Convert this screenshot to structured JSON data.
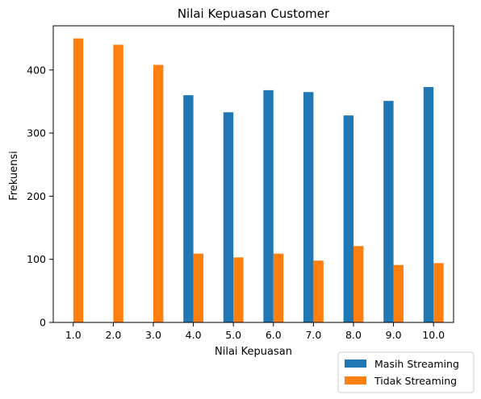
{
  "chart_data": {
    "type": "bar",
    "title": "Nilai Kepuasan Customer",
    "xlabel": "Nilai Kepuasan",
    "ylabel": "Frekuensi",
    "categories": [
      "1.0",
      "2.0",
      "3.0",
      "4.0",
      "5.0",
      "6.0",
      "7.0",
      "8.0",
      "9.0",
      "10.0"
    ],
    "ylim": [
      0,
      470
    ],
    "yticks": [
      0,
      100,
      200,
      300,
      400
    ],
    "grid": false,
    "legend_position": "lower-right-outside",
    "series": [
      {
        "name": "Masih Streaming",
        "color": "#1f77b4",
        "values": [
          0,
          0,
          0,
          360,
          333,
          368,
          365,
          328,
          351,
          373
        ]
      },
      {
        "name": "Tidak Streaming",
        "color": "#ff7f0e",
        "values": [
          450,
          440,
          408,
          109,
          103,
          109,
          98,
          121,
          91,
          94
        ]
      }
    ]
  }
}
